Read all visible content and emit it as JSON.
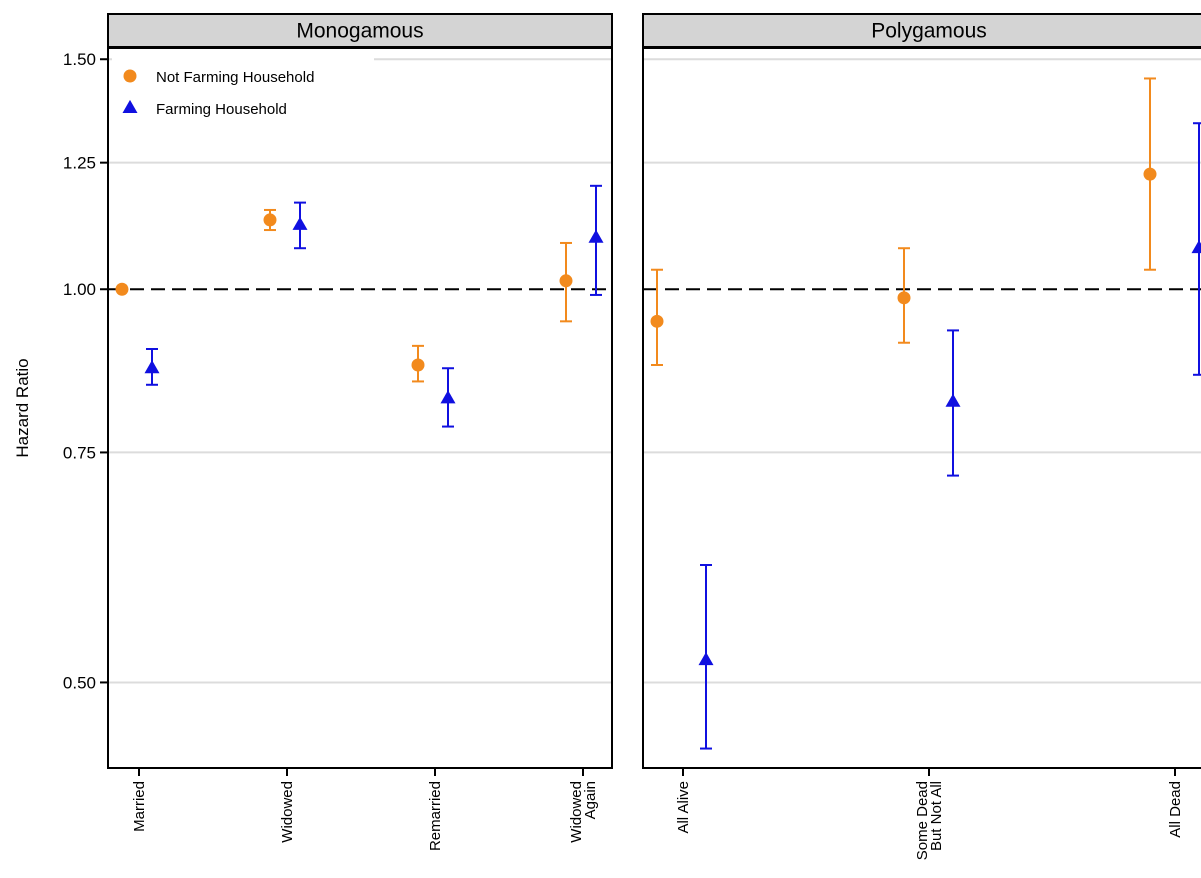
{
  "chart_data": {
    "type": "scatter",
    "ylabel": "Hazard Ratio",
    "y_scale": "log",
    "ylim": [
      0.43,
      1.53
    ],
    "yticks": [
      0.5,
      0.75,
      1.0,
      1.25,
      1.5
    ],
    "ytick_labels": [
      "0.50",
      "0.75",
      "1.00",
      "1.25",
      "1.50"
    ],
    "reference_line": 1.0,
    "grid": true,
    "legend": {
      "position": "top-left",
      "entries": [
        {
          "series": "Not Farming Household",
          "marker": "circle",
          "color": "#f28a1d"
        },
        {
          "series": "Farming Household",
          "marker": "triangle",
          "color": "#1010e0"
        }
      ]
    },
    "panels": [
      {
        "title": "Monogamous",
        "categories": [
          {
            "key": "married",
            "lines": [
              "Married"
            ]
          },
          {
            "key": "widowed",
            "lines": [
              "Widowed"
            ]
          },
          {
            "key": "remarried",
            "lines": [
              "Remarried"
            ]
          },
          {
            "key": "widowed-again",
            "lines": [
              "Widowed",
              "Again"
            ]
          }
        ],
        "series": [
          {
            "name": "Not Farming Household",
            "values": [
              1.0,
              1.13,
              0.875,
              1.015
            ],
            "lower": [
              1.0,
              1.11,
              0.85,
              0.945
            ],
            "upper": [
              1.0,
              1.15,
              0.905,
              1.085
            ]
          },
          {
            "name": "Farming Household",
            "values": [
              0.87,
              1.12,
              0.825,
              1.095
            ],
            "lower": [
              0.845,
              1.075,
              0.785,
              0.99
            ],
            "upper": [
              0.9,
              1.165,
              0.87,
              1.2
            ]
          }
        ]
      },
      {
        "title": "Polygamous",
        "categories": [
          {
            "key": "all-alive",
            "lines": [
              "All Alive"
            ]
          },
          {
            "key": "some-dead",
            "lines": [
              "Some Dead",
              "But Not All"
            ]
          },
          {
            "key": "all-dead",
            "lines": [
              "All Dead"
            ]
          }
        ],
        "series": [
          {
            "name": "Not Farming Household",
            "values": [
              0.945,
              0.985,
              1.225
            ],
            "lower": [
              0.875,
              0.91,
              1.035
            ],
            "upper": [
              1.035,
              1.075,
              1.45
            ]
          },
          {
            "name": "Farming Household",
            "values": [
              0.52,
              0.82,
              1.075
            ],
            "lower": [
              0.445,
              0.72,
              0.86
            ],
            "upper": [
              0.615,
              0.93,
              1.34
            ]
          }
        ]
      }
    ]
  }
}
